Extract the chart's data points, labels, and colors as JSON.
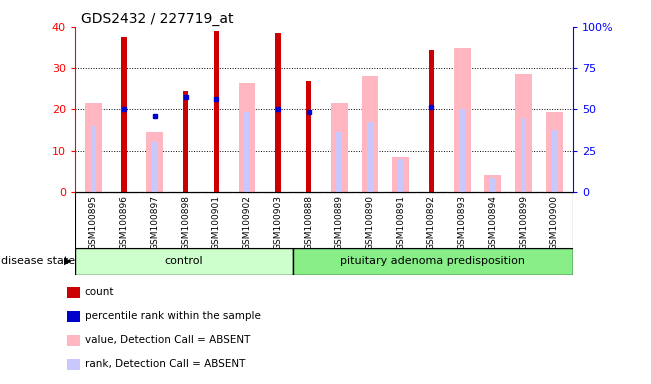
{
  "title": "GDS2432 / 227719_at",
  "samples": [
    "GSM100895",
    "GSM100896",
    "GSM100897",
    "GSM100898",
    "GSM100901",
    "GSM100902",
    "GSM100903",
    "GSM100888",
    "GSM100889",
    "GSM100890",
    "GSM100891",
    "GSM100892",
    "GSM100893",
    "GSM100894",
    "GSM100899",
    "GSM100900"
  ],
  "count_values": [
    0,
    37.5,
    0,
    24.5,
    39,
    0,
    38.5,
    27,
    0,
    0,
    0,
    34.5,
    0,
    0,
    0,
    0
  ],
  "value_absent": [
    21.5,
    0,
    14.5,
    0,
    0,
    26.5,
    0,
    0,
    21.5,
    28,
    8.5,
    0,
    35,
    4,
    28.5,
    19.5
  ],
  "rank_absent": [
    16,
    0,
    12,
    0,
    0,
    19.5,
    0,
    0,
    14.5,
    17,
    8,
    0,
    20,
    3.5,
    18,
    15
  ],
  "percentile_rank": [
    0,
    20,
    18.5,
    23,
    22.5,
    0,
    20,
    19.5,
    0,
    0,
    0,
    20.5,
    0,
    0,
    0,
    0
  ],
  "control_count": 7,
  "disease_count": 9,
  "control_label": "control",
  "disease_label": "pituitary adenoma predisposition",
  "disease_state_label": "disease state",
  "ylim": [
    0,
    40
  ],
  "y2lim": [
    0,
    100
  ],
  "yticks": [
    0,
    10,
    20,
    30,
    40
  ],
  "y2ticks": [
    0,
    25,
    50,
    75,
    100
  ],
  "y2ticklabels": [
    "0",
    "25",
    "50",
    "75",
    "100%"
  ],
  "color_count": "#cc0000",
  "color_value_absent": "#ffb6c1",
  "color_rank_absent": "#c8c8ff",
  "color_percentile": "#0000cc",
  "color_control_bg": "#ccffcc",
  "color_disease_bg": "#88ee88",
  "legend_items": [
    "count",
    "percentile rank within the sample",
    "value, Detection Call = ABSENT",
    "rank, Detection Call = ABSENT"
  ]
}
